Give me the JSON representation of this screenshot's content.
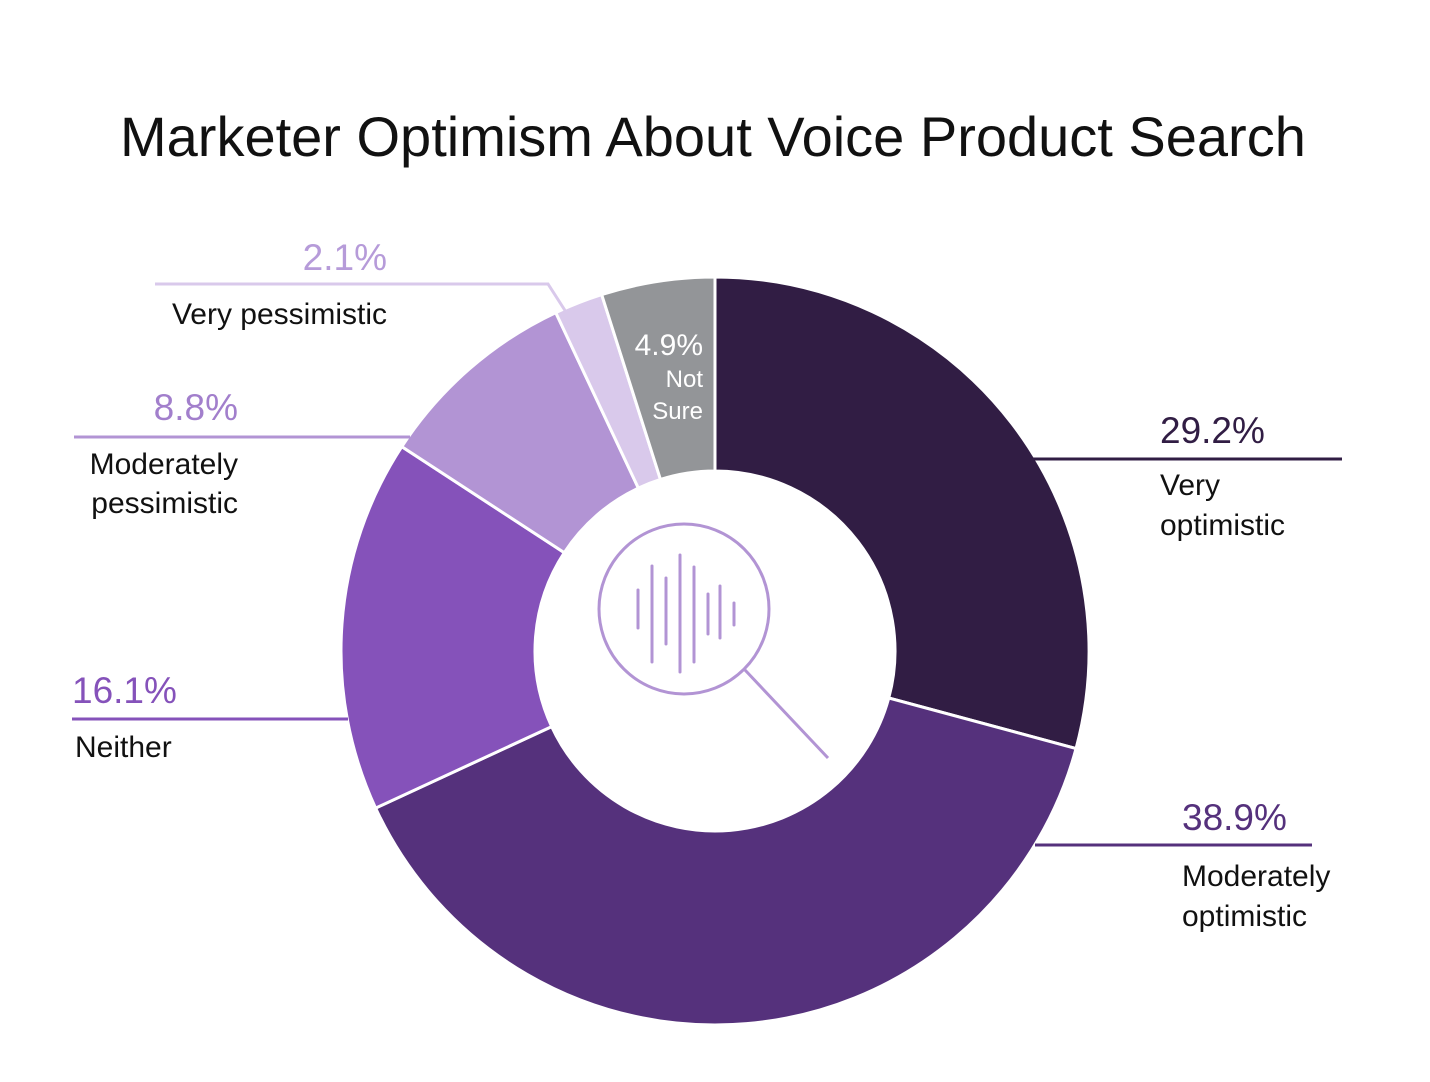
{
  "chart_data": {
    "type": "pie",
    "variant": "donut",
    "title": "Marketer Optimism About Voice Product Search",
    "slices": [
      {
        "label_lines": [
          "Very",
          "optimistic"
        ],
        "value": 29.2,
        "value_label": "29.2%",
        "color": "#311d44",
        "label_color": "#311d44"
      },
      {
        "label_lines": [
          "Moderately",
          "optimistic"
        ],
        "value": 38.9,
        "value_label": "38.9%",
        "color": "#55317c",
        "label_color": "#55317c"
      },
      {
        "label_lines": [
          "Neither"
        ],
        "value": 16.1,
        "value_label": "16.1%",
        "color": "#8552ba",
        "label_color": "#8552ba"
      },
      {
        "label_lines": [
          "Moderately",
          "pessimistic"
        ],
        "value": 8.8,
        "value_label": "8.8%",
        "color": "#b294d4",
        "label_color": "#a27fcc"
      },
      {
        "label_lines": [
          "Very pessimistic"
        ],
        "value": 2.1,
        "value_label": "2.1%",
        "color": "#d9c9eb",
        "label_color": "#b69bd9"
      },
      {
        "label_lines": [
          "Not",
          "Sure"
        ],
        "value": 4.9,
        "value_label": "4.9%",
        "color": "#939598",
        "label_color": "#ffffff"
      }
    ],
    "center_icon": "voice-search-magnifier-icon",
    "legend": "none"
  }
}
